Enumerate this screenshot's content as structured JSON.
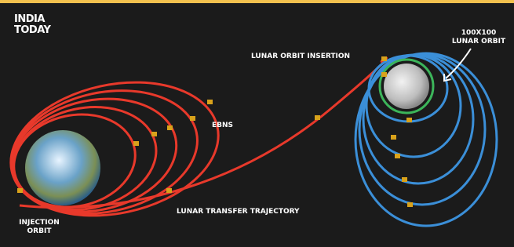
{
  "logo": [
    "INDIA",
    "TODAY"
  ],
  "labels": {
    "lunar_orbit_insertion": "LUNAR ORBIT INSERTION",
    "lunar_orbit": [
      "100X100",
      "LUNAR ORBIT"
    ],
    "ebns": "EBNS",
    "injection_orbit": [
      "INJECTION",
      "ORBIT"
    ],
    "transfer": "LUNAR TRANSFER TRAJECTORY"
  }
}
